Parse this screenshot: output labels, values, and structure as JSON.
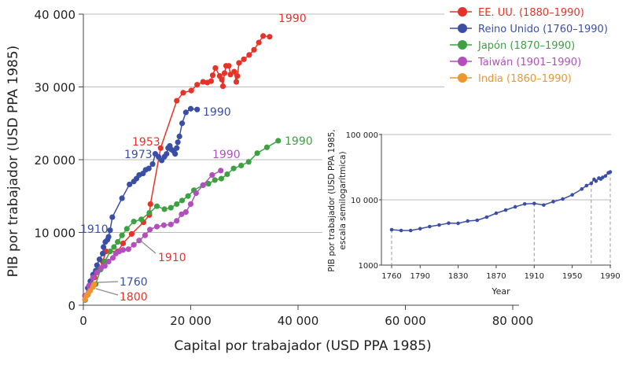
{
  "chart_data": [
    {
      "type": "line",
      "xlabel": "Capital por trabajador (USD PPA 1985)",
      "ylabel": "PIB por trabajador (USD PPA 1985)",
      "xlim": [
        0,
        80000
      ],
      "ylim": [
        0,
        40000
      ],
      "xticks": [
        0,
        20000,
        40000,
        60000,
        80000
      ],
      "xtick_labels": [
        "0",
        "20 000",
        "40 000",
        "60 000",
        "80 000"
      ],
      "yticks": [
        0,
        10000,
        20000,
        30000,
        40000
      ],
      "ytick_labels": [
        "0",
        "10 000",
        "20 000",
        "30 000",
        "40 000"
      ],
      "grid": "horizontal",
      "legend_position": "top-right",
      "series": [
        {
          "name": "EE. UU. (1880–1990)",
          "color": "#e5332a",
          "points": [
            [
              300,
              1300
            ],
            [
              1070,
              2350
            ],
            [
              2050,
              3800
            ],
            [
              3020,
              4900
            ],
            [
              3600,
              6000
            ],
            [
              4240,
              7400
            ],
            [
              6400,
              7400
            ],
            [
              7400,
              8500
            ],
            [
              9000,
              9800
            ],
            [
              11200,
              11400
            ],
            [
              12300,
              12400
            ],
            [
              12500,
              13900
            ],
            [
              14400,
              21600
            ],
            [
              17400,
              28100
            ],
            [
              18600,
              29200
            ],
            [
              20100,
              29500
            ],
            [
              21200,
              30300
            ],
            [
              22300,
              30700
            ],
            [
              23100,
              30600
            ],
            [
              23800,
              30800
            ],
            [
              24100,
              31600
            ],
            [
              24600,
              32600
            ],
            [
              25400,
              31500
            ],
            [
              25800,
              31000
            ],
            [
              26000,
              30100
            ],
            [
              26300,
              31900
            ],
            [
              26600,
              32900
            ],
            [
              27100,
              32900
            ],
            [
              27400,
              31700
            ],
            [
              28100,
              32100
            ],
            [
              28500,
              30700
            ],
            [
              28700,
              31500
            ],
            [
              29000,
              33300
            ],
            [
              29900,
              33800
            ],
            [
              30900,
              34400
            ],
            [
              31800,
              35100
            ],
            [
              32700,
              36100
            ],
            [
              33500,
              37000
            ],
            [
              34700,
              36900
            ]
          ]
        },
        {
          "name": "Reino Unido (1760–1990)",
          "color": "#3b4ea6",
          "points": [
            [
              340,
              1270
            ],
            [
              830,
              2360
            ],
            [
              1300,
              3300
            ],
            [
              1800,
              4200
            ],
            [
              2300,
              4750
            ],
            [
              2540,
              5500
            ],
            [
              3000,
              6300
            ],
            [
              3600,
              7100
            ],
            [
              3750,
              8000
            ],
            [
              4100,
              8700
            ],
            [
              4500,
              9000
            ],
            [
              4700,
              9400
            ],
            [
              4980,
              10300
            ],
            [
              5400,
              12100
            ],
            [
              7200,
              14700
            ],
            [
              8600,
              16600
            ],
            [
              9400,
              17000
            ],
            [
              9900,
              17400
            ],
            [
              10400,
              17900
            ],
            [
              11100,
              18100
            ],
            [
              11600,
              18600
            ],
            [
              12200,
              18800
            ],
            [
              12900,
              19400
            ],
            [
              13400,
              20800
            ],
            [
              14000,
              20400
            ],
            [
              14600,
              19900
            ],
            [
              15100,
              20400
            ],
            [
              15500,
              20800
            ],
            [
              15800,
              21600
            ],
            [
              16100,
              21900
            ],
            [
              16400,
              21400
            ],
            [
              16800,
              21200
            ],
            [
              17100,
              20800
            ],
            [
              17400,
              21600
            ],
            [
              17600,
              22400
            ],
            [
              17900,
              23200
            ],
            [
              18400,
              25000
            ],
            [
              19100,
              26500
            ],
            [
              20000,
              27000
            ],
            [
              21200,
              26900
            ]
          ]
        },
        {
          "name": "Japón (1870–1990)",
          "color": "#3ea043",
          "points": [
            [
              340,
              720
            ],
            [
              830,
              1450
            ],
            [
              1560,
              2500
            ],
            [
              2300,
              2900
            ],
            [
              3200,
              4900
            ],
            [
              4000,
              6000
            ],
            [
              5000,
              7400
            ],
            [
              5700,
              8000
            ],
            [
              6400,
              8700
            ],
            [
              7200,
              9600
            ],
            [
              8100,
              10500
            ],
            [
              9400,
              11500
            ],
            [
              10800,
              11800
            ],
            [
              12300,
              12700
            ],
            [
              13700,
              13600
            ],
            [
              15100,
              13200
            ],
            [
              16300,
              13400
            ],
            [
              17400,
              13900
            ],
            [
              18400,
              14400
            ],
            [
              19500,
              15000
            ],
            [
              20600,
              15800
            ],
            [
              22300,
              16500
            ],
            [
              23300,
              16700
            ],
            [
              24500,
              17200
            ],
            [
              25700,
              17400
            ],
            [
              26800,
              18000
            ],
            [
              28000,
              18800
            ],
            [
              29400,
              19200
            ],
            [
              30800,
              19700
            ],
            [
              32400,
              20900
            ],
            [
              34200,
              21700
            ],
            [
              36300,
              22600
            ]
          ]
        },
        {
          "name": "Taiwán (1901–1990)",
          "color": "#b34fbd",
          "points": [
            [
              340,
              1270
            ],
            [
              1070,
              2700
            ],
            [
              1800,
              3800
            ],
            [
              2540,
              4500
            ],
            [
              3300,
              5100
            ],
            [
              4000,
              5400
            ],
            [
              4700,
              6000
            ],
            [
              5500,
              6500
            ],
            [
              6050,
              7100
            ],
            [
              6700,
              7400
            ],
            [
              7400,
              7600
            ],
            [
              8400,
              7700
            ],
            [
              9400,
              8300
            ],
            [
              10400,
              8900
            ],
            [
              11500,
              9600
            ],
            [
              12400,
              10400
            ],
            [
              13700,
              10800
            ],
            [
              15000,
              11000
            ],
            [
              16300,
              11100
            ],
            [
              17400,
              11600
            ],
            [
              18300,
              12500
            ],
            [
              19100,
              12800
            ],
            [
              20000,
              13900
            ],
            [
              21000,
              15400
            ],
            [
              22300,
              16500
            ],
            [
              24000,
              17900
            ],
            [
              25600,
              18500
            ]
          ]
        },
        {
          "name": "India (1860–1990)",
          "color": "#f0952e",
          "points": [
            [
              300,
              800
            ],
            [
              600,
              1300
            ],
            [
              900,
              1600
            ],
            [
              1300,
              2000
            ],
            [
              1800,
              2500
            ],
            [
              2000,
              2900
            ]
          ]
        }
      ],
      "annotations": {
        "us_1990": "1990",
        "uk_1990": "1990",
        "jp_1990": "1990",
        "tw_1990": "1990",
        "us_1953": "1953",
        "uk_1973": "1973",
        "uk_1910": "1910",
        "tw_1910": "1910",
        "uk_1760": "1760",
        "us_1800": "1800"
      }
    },
    {
      "type": "line",
      "xlabel": "Year",
      "ylabel": "PIB por trabajador (USD PPA 1985, escala semilogarítmica)",
      "ylabel_lines": [
        "PIB por trabajador (USD PPA 1985,",
        "escala semilogarítmica)"
      ],
      "yscale": "log",
      "xlim": [
        1760,
        1990
      ],
      "ylim": [
        1000,
        100000
      ],
      "xtick_labels": [
        "1760",
        "1790",
        "1830",
        "1870",
        "1910",
        "1950",
        "1990"
      ],
      "ytick_labels": [
        "1000",
        "10 000",
        "100 000"
      ],
      "dashed_markers": [
        1760,
        1910,
        1970,
        1990
      ],
      "color": "#3b4ea6",
      "points": [
        [
          1760,
          3480
        ],
        [
          1770,
          3390
        ],
        [
          1780,
          3390
        ],
        [
          1790,
          3610
        ],
        [
          1800,
          3890
        ],
        [
          1810,
          4110
        ],
        [
          1820,
          4390
        ],
        [
          1830,
          4360
        ],
        [
          1840,
          4730
        ],
        [
          1850,
          4860
        ],
        [
          1860,
          5430
        ],
        [
          1870,
          6240
        ],
        [
          1880,
          6970
        ],
        [
          1890,
          7800
        ],
        [
          1900,
          8630
        ],
        [
          1910,
          8790
        ],
        [
          1920,
          8320
        ],
        [
          1930,
          9370
        ],
        [
          1940,
          10280
        ],
        [
          1950,
          11900
        ],
        [
          1960,
          14600
        ],
        [
          1965,
          16500
        ],
        [
          1970,
          17900
        ],
        [
          1973,
          20600
        ],
        [
          1975,
          19300
        ],
        [
          1978,
          21500
        ],
        [
          1980,
          20800
        ],
        [
          1982,
          22000
        ],
        [
          1985,
          23200
        ],
        [
          1988,
          25900
        ],
        [
          1990,
          26700
        ]
      ]
    }
  ]
}
